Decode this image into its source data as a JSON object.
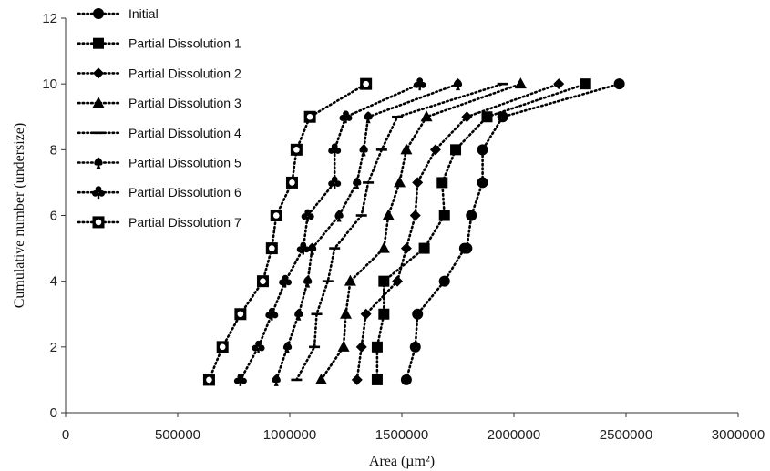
{
  "chart_data": {
    "type": "line",
    "xlabel": "Area (µm²)",
    "ylabel": "Cumulative number (undersize)",
    "xlim": [
      0,
      3000000
    ],
    "ylim": [
      0,
      12
    ],
    "xticks": [
      0,
      500000,
      1000000,
      1500000,
      2000000,
      2500000,
      3000000
    ],
    "yticks": [
      0,
      2,
      4,
      6,
      8,
      10,
      12
    ],
    "xtick_labels": [
      "0",
      "500000",
      "1000000",
      "1500000",
      "2000000",
      "2500000",
      "3000000"
    ],
    "ytick_labels": [
      "0",
      "2",
      "4",
      "6",
      "8",
      "10",
      "12"
    ],
    "grid": false,
    "legend_position": "top-left",
    "line_style": "dotted",
    "color": "#000000",
    "series": [
      {
        "name": "Initial",
        "marker": "circle",
        "x": [
          1520000,
          1560000,
          1570000,
          1690000,
          1780000,
          1790000,
          1810000,
          1860000,
          1860000,
          1950000,
          2470000
        ],
        "y": [
          1,
          2,
          3,
          4,
          5,
          5,
          6,
          7,
          8,
          9,
          10
        ]
      },
      {
        "name": "Partial Dissolution 1",
        "marker": "square",
        "x": [
          1390000,
          1390000,
          1420000,
          1420000,
          1600000,
          1690000,
          1680000,
          1740000,
          1880000,
          2320000
        ],
        "y": [
          1,
          2,
          3,
          4,
          5,
          6,
          7,
          8,
          9,
          10
        ]
      },
      {
        "name": "Partial Dissolution 2",
        "marker": "diamond",
        "x": [
          1300000,
          1320000,
          1340000,
          1480000,
          1520000,
          1560000,
          1570000,
          1650000,
          1790000,
          2200000
        ],
        "y": [
          1,
          2,
          3,
          4,
          5,
          6,
          7,
          8,
          9,
          10
        ]
      },
      {
        "name": "Partial Dissolution 3",
        "marker": "triangle",
        "x": [
          1140000,
          1240000,
          1250000,
          1270000,
          1420000,
          1440000,
          1490000,
          1520000,
          1610000,
          2030000
        ],
        "y": [
          1,
          2,
          3,
          4,
          5,
          6,
          7,
          8,
          9,
          10
        ]
      },
      {
        "name": "Partial Dissolution 4",
        "marker": "dash",
        "x": [
          1030000,
          1110000,
          1120000,
          1170000,
          1200000,
          1320000,
          1350000,
          1410000,
          1480000,
          1950000
        ],
        "y": [
          1,
          2,
          3,
          4,
          5,
          6,
          7,
          8,
          9,
          10
        ]
      },
      {
        "name": "Partial Dissolution 5",
        "marker": "spade",
        "x": [
          940000,
          990000,
          1040000,
          1080000,
          1100000,
          1220000,
          1300000,
          1330000,
          1350000,
          1750000
        ],
        "y": [
          1,
          2,
          3,
          4,
          5,
          6,
          7,
          8,
          9,
          10
        ]
      },
      {
        "name": "Partial Dissolution 6",
        "marker": "club",
        "x": [
          780000,
          860000,
          920000,
          980000,
          1060000,
          1080000,
          1200000,
          1200000,
          1250000,
          1580000
        ],
        "y": [
          1,
          2,
          3,
          4,
          5,
          6,
          7,
          8,
          9,
          10
        ]
      },
      {
        "name": "Partial Dissolution 7",
        "marker": "hollow-square",
        "x": [
          640000,
          700000,
          780000,
          880000,
          920000,
          940000,
          1010000,
          1030000,
          1090000,
          1340000
        ],
        "y": [
          1,
          2,
          3,
          4,
          5,
          6,
          7,
          8,
          9,
          10
        ]
      }
    ]
  }
}
